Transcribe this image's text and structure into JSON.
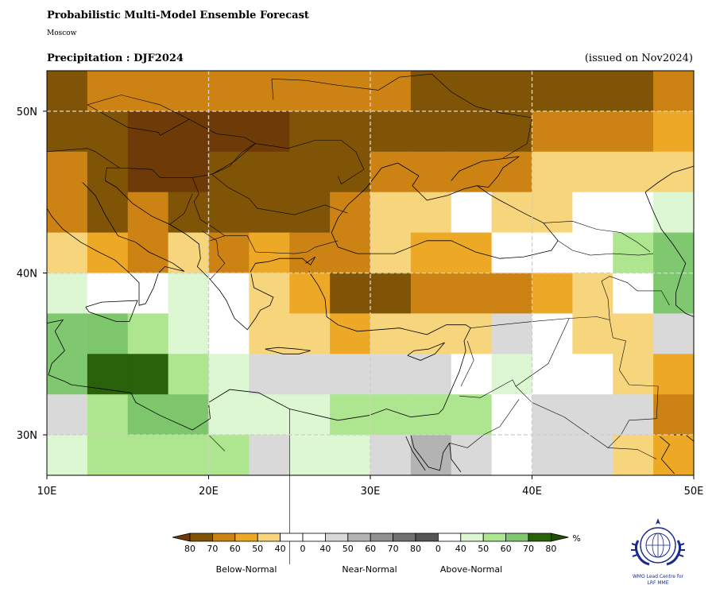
{
  "header": {
    "title": "Probabilistic Multi-Model Ensemble Forecast",
    "subtitle": "Moscow",
    "variable_line": "Precipitation : DJF2024",
    "issued": "(issued on Nov2024)"
  },
  "map": {
    "lon_range": [
      10,
      50
    ],
    "lat_range": [
      27.5,
      52.5
    ],
    "lon_ticks": [
      "10E",
      "20E",
      "30E",
      "40E",
      "50E"
    ],
    "lat_ticks": [
      "30N",
      "40N",
      "50N"
    ],
    "grid_cell_deg": 2.5,
    "rows_north_to_south": [
      "A3 B2 B2 B2 B2 B2 B2 B2 B2 A3 A3 A3 A3 A3 A3 B2",
      "A3 A3 A4 A4 A4 A4 A3 A3 A3 A3 A3 A3 B2 B2 B2 B1",
      "B2 A3 A4 A4 A3 A3 A3 A3 B2 B2 B2 B2 B0 B0 B0 B0",
      "B2 A3 B2 A3 A3 A3 A3 B2 B0 B0 W0 B0 B0 W0 W0 C0",
      "B0 B1 B2 B0 B2 B1 B2 B2 B0 B1 B1 W0 W0 W0 C1 C2",
      "C0 W0 W0 C0 W0 B0 B1 A3 A3 B2 B2 B2 B1 B0 W0 C2",
      "C2 C3 C1 C0 W0 B0 B0 B1 B0 B0 B0 N0 W0 B0 B0 N0",
      "C2 C5 C5 C1 C0 N0 N0 N0 N0 N0 W0 C0 W0 W0 B0 B1",
      "N0 C1 C3 C3 C0 C0 C0 C1 C1 C1 C1 W0 N0 N0 N0 B2",
      "C0 C1 C1 C1 C1 N0 C0 C0 N0 N1 N0 W0 N0 N0 B0 B1"
    ],
    "category_colors": {
      "A4": "#6e3a07",
      "A3": "#7f5407",
      "B2": "#cc8314",
      "B1": "#eda926",
      "B0": "#f7d57c",
      "W0": "#ffffff",
      "N0": "#d9d9d9",
      "N1": "#b3b3b3",
      "C0": "#dcf7d2",
      "C1": "#ade68f",
      "C2": "#80c870",
      "C3": "#7dc66b",
      "C5": "#2a610b"
    },
    "coastline_color": "#000000",
    "gridline_color": "#cfcfcf"
  },
  "colorbar": {
    "unit": "%",
    "groups": [
      {
        "label": "Below-Normal",
        "ticks": [
          "80",
          "70",
          "60",
          "50",
          "40"
        ],
        "colors": [
          "#7f5407",
          "#cc8314",
          "#eda926",
          "#f7d57c",
          "#ffffff"
        ]
      },
      {
        "label": "Near-Normal",
        "ticks": [
          "0",
          "40",
          "50",
          "60",
          "70",
          "80"
        ],
        "colors": [
          "#ffffff",
          "#d9d9d9",
          "#b3b3b3",
          "#909090",
          "#707070",
          "#555555"
        ]
      },
      {
        "label": "Above-Normal",
        "ticks": [
          "0",
          "40",
          "50",
          "60",
          "70",
          "80"
        ],
        "colors": [
          "#ffffff",
          "#dcf7d2",
          "#ade68f",
          "#80c870",
          "#2a610b"
        ]
      }
    ],
    "extend_left_color": "#6e3a07",
    "extend_right_color": "#1f4f05"
  },
  "logo": {
    "line1": "WMO Lead Centre for",
    "line2": "LRF MME"
  }
}
